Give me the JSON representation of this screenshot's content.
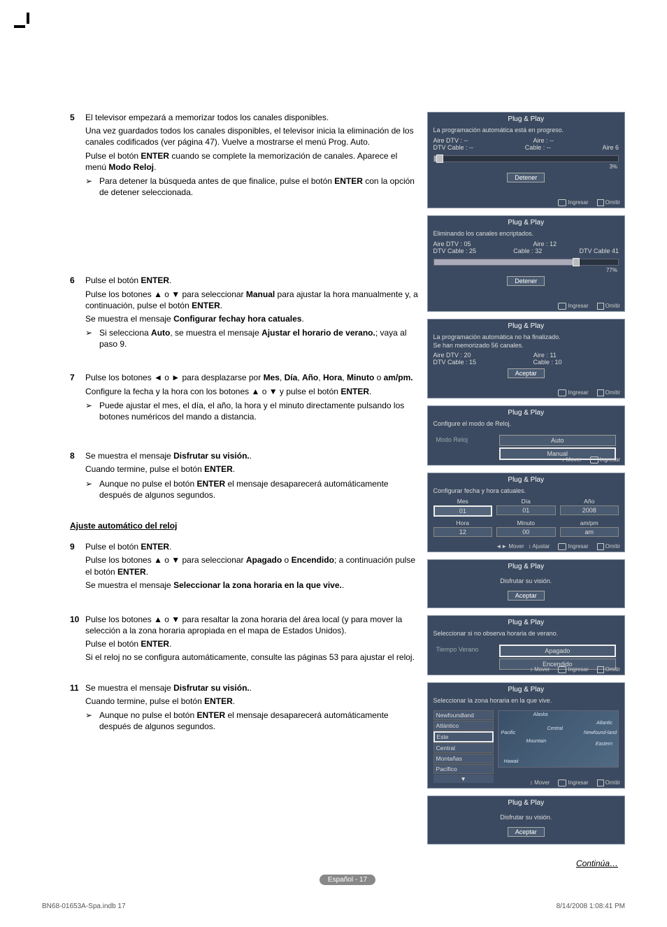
{
  "steps": [
    {
      "n": "5",
      "paras": [
        "El televisor empezará a memorizar todos los canales disponibles.",
        "Una vez guardados todos los canales disponibles, el televisor inicia la eliminación de los canales codificados (ver página 47). Vuelve a mostrarse el menú Prog. Auto.",
        "Pulse el botón <b>ENTER</b> cuando se complete la memorización de canales. Aparece el menú <b>Modo Reloj</b>."
      ],
      "subs": [
        "Para detener la búsqueda antes de que finalice, pulse el botón <b>ENTER</b> con la opción de detener seleccionada."
      ]
    },
    {
      "n": "6",
      "paras": [
        "Pulse el botón <b>ENTER</b>.",
        "Pulse los botones ▲ o ▼ para seleccionar <b>Manual</b> para ajustar la hora manualmente y, a continuación, pulse el botón <b>ENTER</b>.",
        "Se muestra el mensaje <b>Configurar fechay hora catuales</b>."
      ],
      "subs": [
        "Si selecciona <b>Auto</b>, se muestra el mensaje <b>Ajustar el horario de verano.</b>; vaya al paso 9."
      ]
    },
    {
      "n": "7",
      "paras": [
        "Pulse los botones ◄ o ► para desplazarse por <b>Mes</b>, <b>Día</b>, <b>Año</b>, <b>Hora</b>, <b>Minuto</b> o <b>am/pm.</b>",
        "Configure la fecha y la hora con los botones ▲ o ▼ y pulse el botón <b>ENTER</b>."
      ],
      "subs": [
        "Puede ajustar el mes, el día, el año, la hora y el minuto directamente pulsando los botones numéricos del mando a distancia."
      ]
    },
    {
      "n": "8",
      "paras": [
        "Se muestra el mensaje <b>Disfrutar su visión.</b>.",
        "Cuando termine, pulse el botón <b>ENTER</b>."
      ],
      "subs": [
        "Aunque no pulse el botón <b>ENTER</b> el mensaje desaparecerá automáticamente después de algunos segundos."
      ]
    }
  ],
  "section_title": "Ajuste automático del reloj",
  "steps2": [
    {
      "n": "9",
      "paras": [
        "Pulse el botón <b>ENTER</b>.",
        "Pulse los botones ▲ o ▼ para seleccionar <b>Apagado</b> o <b>Encendido</b>; a continuación pulse el botón <b>ENTER</b>.",
        "Se muestra el mensaje <b>Seleccionar la zona horaria en la que vive.</b>."
      ],
      "subs": []
    },
    {
      "n": "10",
      "paras": [
        "Pulse los botones ▲ o ▼ para resaltar la zona horaria del área local (y para mover la selección a la zona horaria apropiada en el mapa de Estados Unidos).",
        "Pulse el botón <b>ENTER</b>.",
        "Si el reloj no se configura automáticamente, consulte las páginas 53 para ajustar el reloj."
      ],
      "subs": []
    },
    {
      "n": "11",
      "paras": [
        "Se muestra el mensaje <b>Disfrutar su visión.</b>.",
        "Cuando termine, pulse el botón <b>ENTER</b>."
      ],
      "subs": [
        "Aunque no pulse el botón <b>ENTER</b> el mensaje desaparecerá automáticamente después de algunos segundos."
      ]
    }
  ],
  "continua": "Continúa…",
  "page_label": "Español - 17",
  "bottom_left": "BN68-01653A-Spa.indb   17",
  "bottom_right": "8/14/2008   1:08:41 PM",
  "tv": {
    "pp": "Plug & Play",
    "ingresar": "Ingresar",
    "omitir": "Omitir",
    "mover": "Mover",
    "ajustar": "Ajustar",
    "detener": "Detener",
    "aceptar": "Aceptar",
    "p1": {
      "msg": "La programación automática está en progreso.",
      "l1a": "Aire DTV : --",
      "l1b": "Aire : --",
      "l2a": "DTV Cable : --",
      "l2b": "Cable : --",
      "right": "Aire 6",
      "pct": "3%",
      "fill": 3
    },
    "p2": {
      "msg": "Eliminando los canales encriptados.",
      "l1a": "Aire DTV : 05",
      "l1b": "Aire : 12",
      "l2a": "DTV Cable : 25",
      "l2b": "Cable : 32",
      "right": "DTV Cable 41",
      "pct": "77%",
      "fill": 77
    },
    "p3": {
      "msg": "La programación automática no ha finalizado.",
      "msg2": "Se han memorizado 56 canales.",
      "l1a": "Aire DTV : 20",
      "l1b": "Aire : 11",
      "l2a": "DTV Cable : 15",
      "l2b": "Cable : 10"
    },
    "p4": {
      "msg": "Configure el modo de Reloj.",
      "label": "Modo Reloj",
      "o1": "Auto",
      "o2": "Manual"
    },
    "p5": {
      "msg": "Configurar fecha y hora catuales.",
      "c": [
        {
          "l": "Mes",
          "v": "01"
        },
        {
          "l": "Día",
          "v": "01"
        },
        {
          "l": "Año",
          "v": "2008"
        },
        {
          "l": "Hora",
          "v": "12"
        },
        {
          "l": "Minuto",
          "v": "00"
        },
        {
          "l": "am/pm",
          "v": "am"
        }
      ]
    },
    "p6": {
      "msg": "Disfrutar su visión."
    },
    "p7": {
      "msg": "Seleccionar si no observa horaria de verano.",
      "label": "Tiempo Verano",
      "o1": "Apagado",
      "o2": "Encendido"
    },
    "p8": {
      "msg": "Seleccionar la zona horaria en la que vive.",
      "zones": [
        "Newfoundland",
        "Atlántico",
        "Este",
        "Central",
        "Montañas",
        "Pacífico"
      ],
      "map": [
        "Alaska",
        "Pacific",
        "Mountain",
        "Central",
        "Eastern",
        "Atlantic",
        "Newfound-land",
        "Hawaii"
      ]
    },
    "p9": {
      "msg": "Disfrutar su visión."
    }
  }
}
